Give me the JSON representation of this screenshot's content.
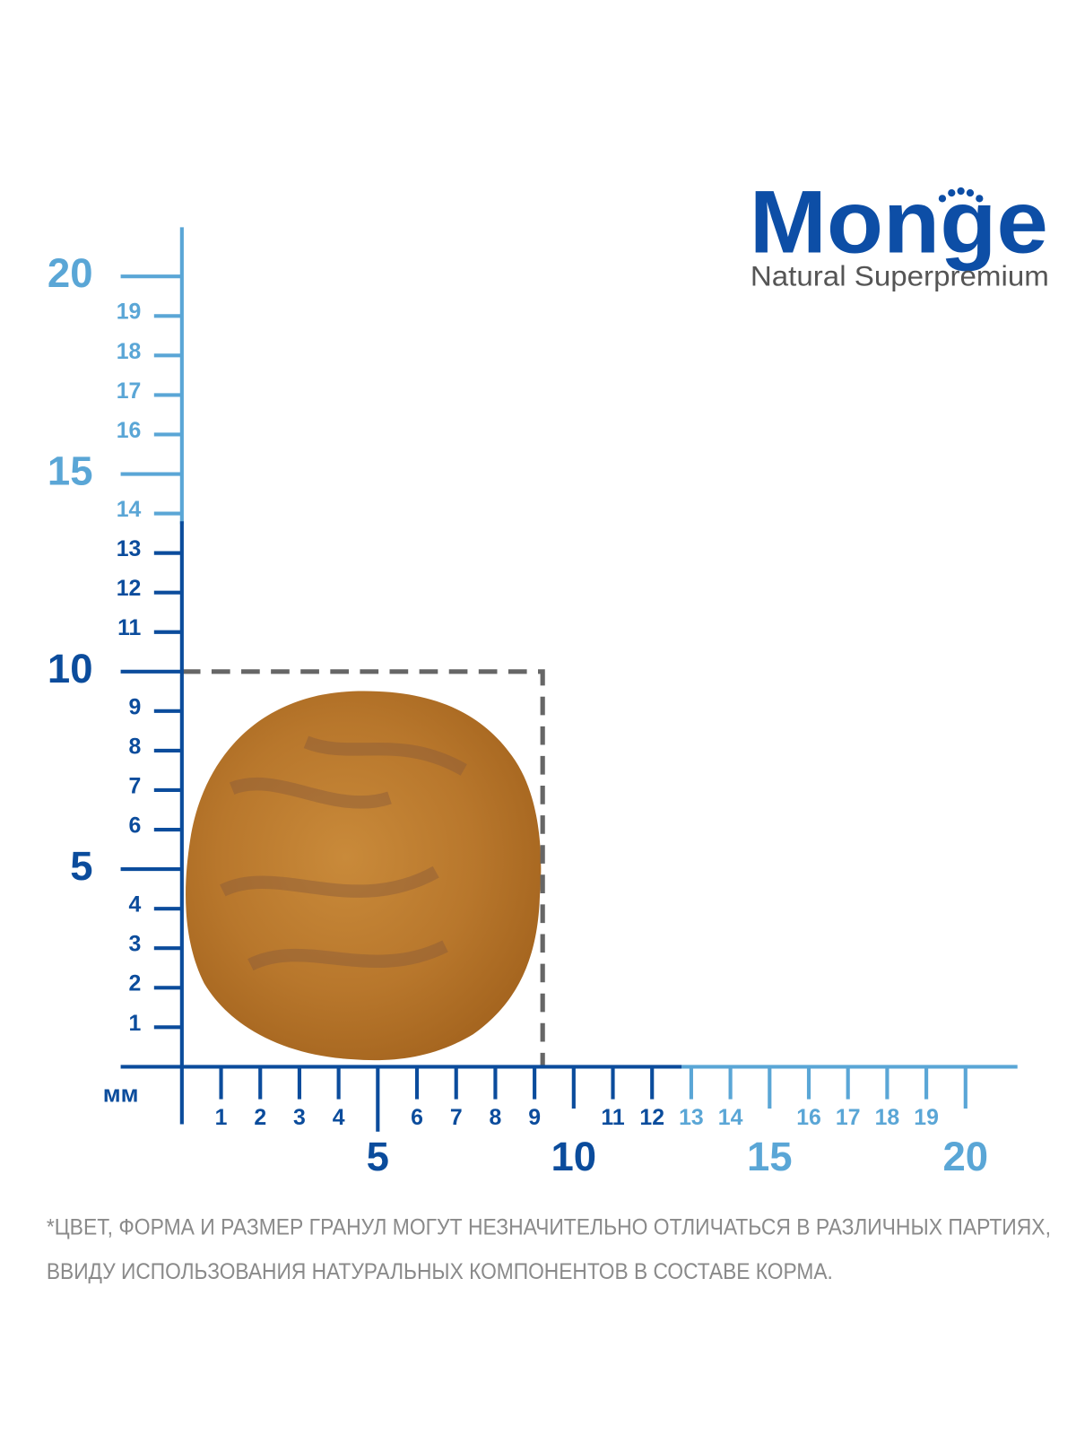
{
  "logo": {
    "brand": "Monge",
    "tagline": "Natural Superpremium"
  },
  "ruler": {
    "unit": "мм",
    "y_ticks": [
      1,
      2,
      3,
      4,
      5,
      6,
      7,
      8,
      9,
      10,
      11,
      12,
      13,
      14,
      15,
      16,
      17,
      18,
      19,
      20
    ],
    "x_ticks": [
      1,
      2,
      3,
      4,
      5,
      6,
      7,
      8,
      9,
      10,
      11,
      12,
      13,
      14,
      15,
      16,
      17,
      18,
      19,
      20
    ]
  },
  "note": [
    "*ЦВЕТ, ФОРМА И РАЗМЕР ГРАНУЛ МОГУТ НЕЗНАЧИТЕЛЬНО ОТЛИЧАТЬСЯ В РАЗЛИЧНЫХ ПАРТИЯХ,",
    "ВВИДУ ИСПОЛЬЗОВАНИЯ НАТУРАЛЬНЫХ КОМПОНЕНТОВ В СОСТАВЕ КОРМА."
  ]
}
